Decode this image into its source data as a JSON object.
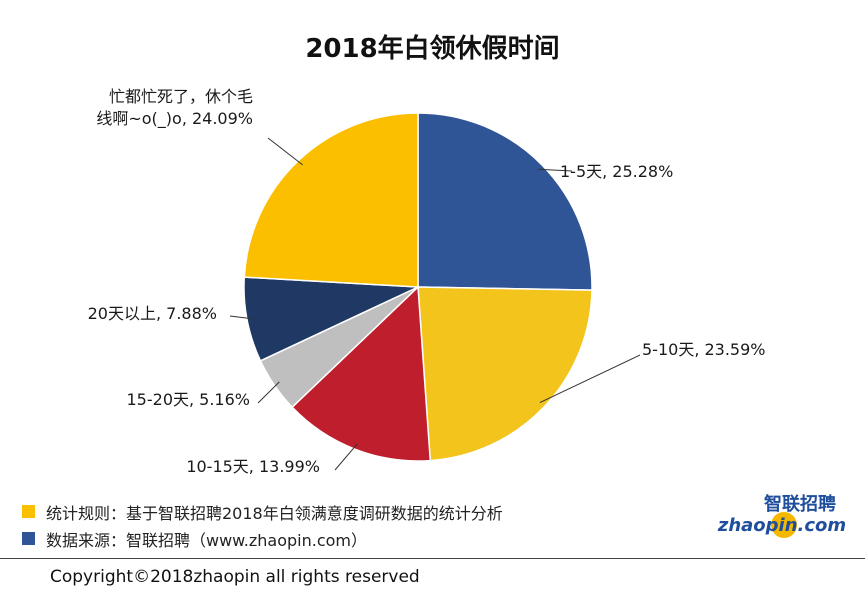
{
  "title": "2018年白领休假时间",
  "chart_data": {
    "type": "pie",
    "title": "2018年白领休假时间",
    "start_angle_deg": 0,
    "direction": "clockwise",
    "slices": [
      {
        "label": "1-5天, 25.28%",
        "value": 25.28,
        "color": "#2f5597"
      },
      {
        "label": "5-10天, 23.59%",
        "value": 23.59,
        "color": "#f2c41c"
      },
      {
        "label": "10-15天, 13.99%",
        "value": 13.99,
        "color": "#bf1e2d"
      },
      {
        "label": "15-20天, 5.16%",
        "value": 5.16,
        "color": "#bfbfbf"
      },
      {
        "label": "20天以上, 7.88%",
        "value": 7.88,
        "color": "#1f3864"
      },
      {
        "label": "忙都忙死了，休个毛线啊~o(_)o, 24.09%",
        "label_lines": [
          "忙都忙死了，休个毛",
          "线啊~o(_)o, 24.09%"
        ],
        "value": 24.09,
        "color": "#fbbf00"
      }
    ]
  },
  "notes": [
    {
      "text": "统计规则：基于智联招聘2018年白领满意度调研数据的统计分析",
      "color": "#fbbf00"
    },
    {
      "text": "数据来源：智联招聘（www.zhaopin.com）",
      "color": "#2f5597"
    }
  ],
  "brand": {
    "cn": "智联招聘",
    "en": "zhaopin.com",
    "color": "#1f4e9c",
    "accent": "#f5b800"
  },
  "copyright": "Copyright©2018zhaopin all rights reserved"
}
